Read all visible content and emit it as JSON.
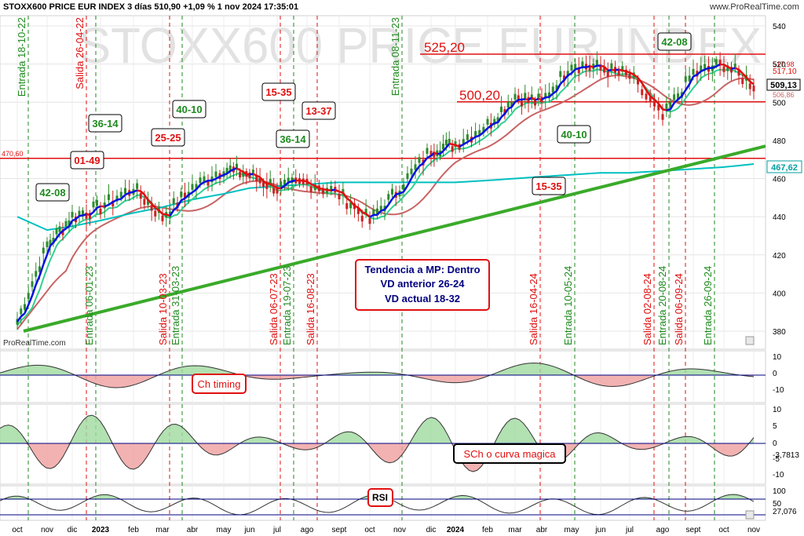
{
  "header": {
    "title": "STOXX600 PRICE EUR INDEX 3 días 510,90 +1,09 % 1 nov 2024 17:35:01",
    "brand_url": "www.ProRealTime.com",
    "brand_short": "ProRealTime.com",
    "watermark": "STOXX600 PRICE EUR INDEX"
  },
  "colors": {
    "green": "#1e8a1e",
    "red": "#e01010",
    "navy": "#000080",
    "teal": "#00c0c0",
    "ma_brown": "#c86464",
    "price_green": "#2e8b2e",
    "price_red": "#cc2222"
  },
  "price_axis": {
    "ticks": [
      540,
      520,
      500,
      480,
      460,
      440,
      420,
      400,
      380
    ],
    "ylim": [
      380,
      540
    ],
    "current_price_label": "509,13",
    "teal_ma_label": "467,62",
    "upper_labels": [
      "517,98",
      "517,10",
      "506,86"
    ]
  },
  "time_axis": {
    "labels": [
      "oct",
      "nov",
      "dic",
      "2023",
      "feb",
      "mar",
      "abr",
      "may",
      "jun",
      "jul",
      "ago",
      "sept",
      "oct",
      "nov",
      "dic",
      "2024",
      "feb",
      "mar",
      "abr",
      "may",
      "jun",
      "jul",
      "ago",
      "sept",
      "oct",
      "nov"
    ],
    "bold": [
      "2023",
      "2024"
    ]
  },
  "levels": [
    {
      "value": 525.2,
      "label": "525,20"
    },
    {
      "value": 500.2,
      "label": "500,20"
    },
    {
      "value": 470.6,
      "label": "470,60"
    }
  ],
  "signals": [
    {
      "type": "Entrada",
      "label": "Entrada 18-10-22",
      "color": "green"
    },
    {
      "type": "Salida",
      "label": "Salida 26-04-22",
      "color": "red"
    },
    {
      "type": "Entrada",
      "label": "Entrada 06-01-23",
      "color": "green"
    },
    {
      "type": "Salida",
      "label": "Salida 10-03-23",
      "color": "red"
    },
    {
      "type": "Entrada",
      "label": "Entrada 31-03-23",
      "color": "green"
    },
    {
      "type": "Salida",
      "label": "Salida 06-07-23",
      "color": "red"
    },
    {
      "type": "Entrada",
      "label": "Entrada 19-07-23",
      "color": "green"
    },
    {
      "type": "Salida",
      "label": "Salida 16-08-23",
      "color": "red"
    },
    {
      "type": "Entrada",
      "label": "Entrada 08-11-23",
      "color": "green"
    },
    {
      "type": "Salida",
      "label": "Salida 16-04-24",
      "color": "red"
    },
    {
      "type": "Entrada",
      "label": "Entrada 10-05-24",
      "color": "green"
    },
    {
      "type": "Salida",
      "label": "Salida 02-08-24",
      "color": "red"
    },
    {
      "type": "Entrada",
      "label": "Entrada 20-08-24",
      "color": "green"
    },
    {
      "type": "Salida",
      "label": "Salida 06-09-24",
      "color": "red"
    },
    {
      "type": "Entrada",
      "label": "Entrada 26-09-24",
      "color": "green"
    }
  ],
  "badges": [
    {
      "text": "42-08",
      "color": "green"
    },
    {
      "text": "01-49",
      "color": "red"
    },
    {
      "text": "36-14",
      "color": "green"
    },
    {
      "text": "25-25",
      "color": "red"
    },
    {
      "text": "40-10",
      "color": "green"
    },
    {
      "text": "15-35",
      "color": "red"
    },
    {
      "text": "13-37",
      "color": "red"
    },
    {
      "text": "36-14",
      "color": "green"
    },
    {
      "text": "15-35",
      "color": "red"
    },
    {
      "text": "40-10",
      "color": "green"
    },
    {
      "text": "42-08",
      "color": "green"
    }
  ],
  "info_box": {
    "line1": "Tendencia a MP: Dentro",
    "line2": "VD anterior 26-24",
    "line3": "VD actual 18-32"
  },
  "panels": {
    "ch_timing": {
      "label": "Ch timing",
      "ticks": [
        "10",
        "0",
        "-10"
      ]
    },
    "sch": {
      "label": "SCh o curva magica",
      "ticks": [
        "10",
        "5",
        "0",
        "-5",
        "-10"
      ],
      "current": "-3,7813"
    },
    "rsi": {
      "label": "RSI",
      "ticks": [
        "100",
        "50"
      ],
      "current": "27,076"
    }
  },
  "chart_data": {
    "type": "line",
    "title": "STOXX600 PRICE EUR INDEX",
    "ylim": [
      380,
      540
    ],
    "x": [
      "oct",
      "nov",
      "dic",
      "2023",
      "feb",
      "mar",
      "abr",
      "may",
      "jun",
      "jul",
      "ago",
      "sept",
      "oct",
      "nov",
      "dic",
      "2024",
      "feb",
      "mar",
      "abr",
      "may",
      "jun",
      "jul",
      "ago",
      "sept",
      "oct",
      "nov"
    ],
    "series": [
      {
        "values": [
          385,
          425,
          440,
          445,
          455,
          440,
          455,
          465,
          462,
          455,
          458,
          452,
          438,
          455,
          475,
          478,
          488,
          503,
          500,
          520,
          518,
          514,
          492,
          515,
          520,
          509
        ]
      },
      {
        "values": [
          440,
          433,
          435,
          438,
          442,
          445,
          449,
          452,
          455,
          456,
          457,
          458,
          458,
          458,
          458,
          458,
          459,
          460,
          461,
          462,
          463,
          463,
          464,
          465,
          466,
          467.6
        ]
      }
    ],
    "support_line": {
      "from": [
        "oct",
        380
      ],
      "to": [
        "nov",
        477
      ]
    }
  }
}
